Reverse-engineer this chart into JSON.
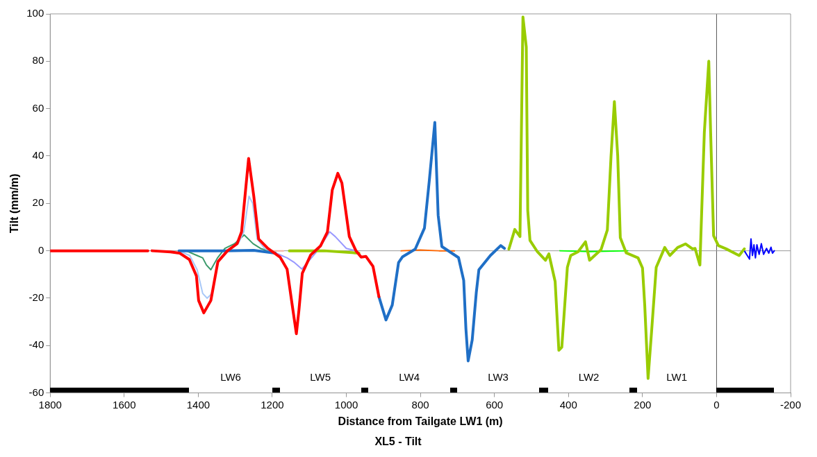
{
  "chart_data": {
    "type": "line",
    "title": "XL5 - Tilt",
    "xlabel": "Distance from Tailgate LW1 (m)",
    "ylabel": "Tilt (mm/m)",
    "xlim": [
      1800,
      -200
    ],
    "xticks": [
      1800,
      1600,
      1400,
      1200,
      1000,
      800,
      600,
      400,
      200,
      0,
      -200
    ],
    "ylim": [
      -60,
      100
    ],
    "yticks": [
      -60,
      -40,
      -20,
      0,
      20,
      40,
      60,
      80,
      100
    ],
    "marker": "none",
    "line_style": "solid",
    "legend": false,
    "series": [
      {
        "color": "#f4b0a0",
        "x": [
          1205,
          1170
        ],
        "values": [
          0,
          0
        ]
      },
      {
        "color": "#ff6600",
        "x": [
          852,
          800,
          750,
          708
        ],
        "values": [
          0,
          0.3,
          0,
          0
        ]
      },
      {
        "color": "#00ff00",
        "x": [
          423,
          340,
          240
        ],
        "values": [
          0,
          -0.3,
          0
        ]
      },
      {
        "color": "#0000ff",
        "x": [
          -75,
          -83,
          -89,
          -93,
          -97,
          -101,
          -105,
          -109,
          -115,
          -121,
          -127,
          -135,
          -141,
          -147,
          -151,
          -156
        ],
        "values": [
          0,
          -2,
          -3.5,
          5,
          -2,
          2.5,
          -3,
          2.5,
          -1.5,
          3,
          -1.5,
          1,
          -1,
          1.5,
          -1,
          0
        ]
      },
      {
        "color": "#9999ff",
        "x": [
          1190,
          1160,
          1140,
          1120,
          1100,
          1078,
          1045,
          1030,
          1000,
          975
        ],
        "values": [
          -1,
          -3,
          -5,
          -7.7,
          -4,
          0,
          8,
          6,
          1,
          0
        ]
      },
      {
        "color": "#3a9a6a",
        "x": [
          1433,
          1403,
          1388,
          1378,
          1366,
          1348,
          1328,
          1302,
          1276,
          1252,
          1232,
          1212
        ],
        "values": [
          0,
          -2,
          -3,
          -6,
          -8,
          -3,
          1,
          3,
          6.7,
          3,
          1,
          0
        ]
      },
      {
        "color": "#a8c8f8",
        "x": [
          1453,
          1423,
          1403,
          1388,
          1376,
          1363,
          1348,
          1323,
          1292,
          1277,
          1263,
          1253,
          1241,
          1221,
          1191
        ],
        "values": [
          0,
          -2,
          -8,
          -18,
          -20,
          -18,
          -5,
          0,
          3,
          8,
          23,
          20,
          5,
          1,
          -1
        ]
      },
      {
        "color": "#99cc00",
        "x": [
          1154,
          1060,
          966,
          760,
          561,
          545,
          531,
          523,
          514,
          510,
          504,
          484,
          462,
          453,
          436,
          426,
          418,
          403,
          394,
          374,
          354,
          343,
          312,
          295,
          285,
          276,
          267,
          260,
          244,
          212,
          200,
          194,
          185,
          175,
          163,
          140,
          126,
          105,
          84,
          65,
          58,
          45,
          33,
          21,
          16,
          8,
          -5,
          -26,
          -61,
          -75
        ],
        "values": [
          0,
          0,
          -1,
          null,
          0.7,
          9,
          6,
          98.7,
          86,
          17,
          4.4,
          -0.4,
          -4,
          -1.3,
          -13,
          -42,
          -40.7,
          -7,
          -2,
          -0.4,
          3.8,
          -4,
          0.5,
          8.8,
          40,
          63,
          40,
          5.5,
          -0.9,
          -3,
          -7.3,
          -23,
          -53.9,
          -33,
          -7,
          1.4,
          -2,
          1.4,
          2.9,
          0.8,
          1,
          -6,
          50,
          80,
          50,
          6.4,
          2.2,
          0.8,
          -2,
          0.8
        ]
      },
      {
        "color": "#1f6fc6",
        "x": [
          1452,
          1330,
          1250,
          1192,
          1050,
          912,
          893,
          876,
          859,
          848,
          814,
          789,
          776,
          761,
          752,
          742,
          697,
          683,
          677,
          671,
          660,
          649,
          642,
          611,
          583,
          573
        ],
        "values": [
          0,
          0,
          0.2,
          -1,
          null,
          -19.4,
          -29.2,
          -22.9,
          -5,
          -2.5,
          0.7,
          9.6,
          29.5,
          54.2,
          15,
          1.8,
          -2.9,
          -12.5,
          -33,
          -46.5,
          -37.6,
          -17.6,
          -8,
          -2,
          2.2,
          1
        ]
      },
      {
        "color": "#ff0000",
        "x": [
          1800,
          1536,
          1530,
          1525,
          1475,
          1450,
          1424,
          1405,
          1399,
          1385,
          1366,
          1347,
          1321,
          1295,
          1283,
          1264,
          1250,
          1237,
          1212,
          1179,
          1160,
          1148,
          1135,
          1128,
          1119,
          1096,
          1070,
          1051,
          1038,
          1023,
          1012,
          992,
          974,
          960,
          947,
          928,
          912
        ],
        "values": [
          0,
          0,
          null,
          0,
          -0.5,
          -1,
          -3.7,
          -10.6,
          -21,
          -26.2,
          -21,
          -4.6,
          0,
          3,
          8,
          39,
          23,
          5,
          1,
          -2.7,
          -7.8,
          -21,
          -35,
          -25,
          -9.5,
          -1.7,
          2,
          8,
          25.7,
          32.7,
          28.6,
          6,
          0,
          -2.7,
          -2.4,
          -6.6,
          -19.4
        ]
      }
    ],
    "ref_lines": [
      {
        "axis": "x",
        "value": 0,
        "color": "#555555"
      },
      {
        "axis": "y",
        "value": 0,
        "color": "#999999"
      }
    ],
    "annotations": [
      "LW6",
      "LW5",
      "LW4",
      "LW3",
      "LW2",
      "LW1"
    ]
  }
}
